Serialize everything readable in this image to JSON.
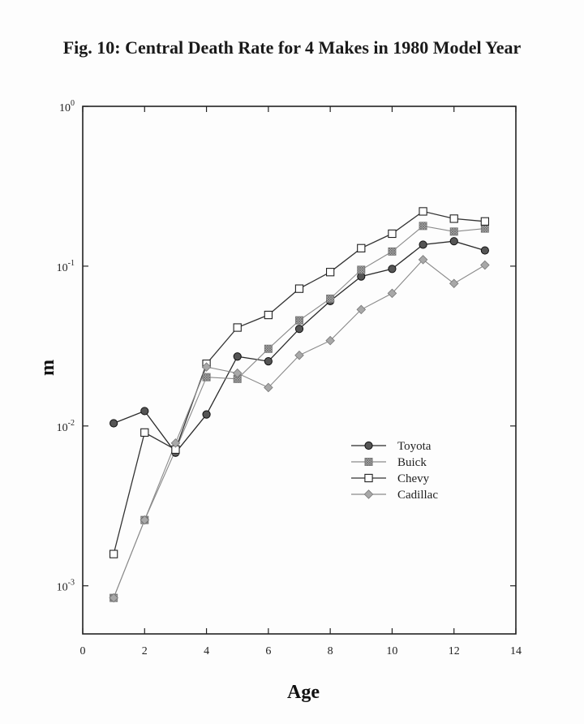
{
  "chart_data": {
    "type": "line",
    "title": "Fig. 10: Central Death Rate for 4 Makes in 1980 Model Year",
    "xlabel": "Age",
    "ylabel": "m",
    "xlim": [
      0,
      14
    ],
    "ylim": [
      0.0005,
      1
    ],
    "yscale": "log",
    "x_ticks": [
      "0",
      "2",
      "4",
      "6",
      "8",
      "10",
      "12",
      "14"
    ],
    "y_ticks": [
      {
        "base": "10",
        "exp": "0",
        "value": 1
      },
      {
        "base": "10",
        "exp": "-1",
        "value": 0.1
      },
      {
        "base": "10",
        "exp": "-2",
        "value": 0.01
      },
      {
        "base": "10",
        "exp": "-3",
        "value": 0.001
      }
    ],
    "grid": false,
    "legend_position": "center-right",
    "x": [
      1,
      2,
      3,
      4,
      5,
      6,
      7,
      8,
      9,
      10,
      11,
      12,
      13
    ],
    "series": [
      {
        "name": "Toyota",
        "marker": "filled-circle",
        "color": "#2a2a2a",
        "values": [
          0.0104,
          0.0124,
          0.0068,
          0.0118,
          0.0272,
          0.0254,
          0.0405,
          0.0605,
          0.0862,
          0.0961,
          0.1363,
          0.1432,
          0.1254
        ]
      },
      {
        "name": "Buick",
        "marker": "hatched-square",
        "color": "#8a8a8a",
        "values": [
          0.00084,
          0.00258,
          0.00706,
          0.0202,
          0.0197,
          0.0304,
          0.0458,
          0.0626,
          0.0949,
          0.1235,
          0.1785,
          0.1645,
          0.1718
        ]
      },
      {
        "name": "Chevy",
        "marker": "open-square",
        "color": "#333333",
        "values": [
          0.00158,
          0.0091,
          0.00712,
          0.0245,
          0.0413,
          0.0495,
          0.0723,
          0.0918,
          0.1295,
          0.1596,
          0.2201,
          0.1982,
          0.1905
        ]
      },
      {
        "name": "Cadillac",
        "marker": "diamond",
        "color": "#8a8a8a",
        "values": [
          0.00084,
          0.00258,
          0.00782,
          0.0234,
          0.0214,
          0.0174,
          0.0277,
          0.0342,
          0.0535,
          0.0676,
          0.1098,
          0.0779,
          0.1016
        ]
      }
    ]
  }
}
